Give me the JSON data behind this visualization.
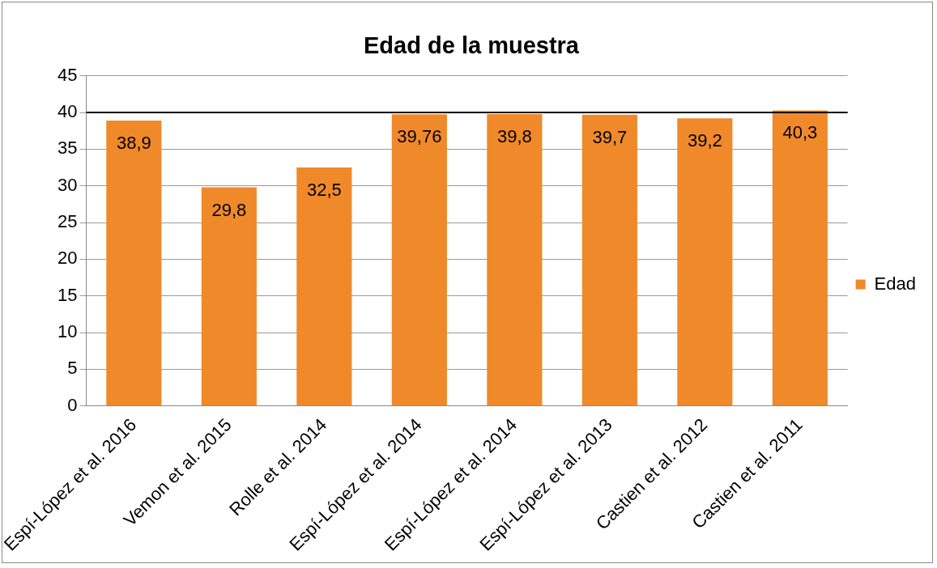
{
  "chart_data": {
    "type": "bar",
    "title": "Edad de la muestra",
    "categories": [
      "Espí-López et al. 2016",
      "Vemon et al. 2015",
      "Rolle et al. 2014",
      "Espí-López et al. 2014",
      "Espí-López et al. 2014",
      "Espí-López et al. 2013",
      "Castien et al. 2012",
      "Castien et al. 2011"
    ],
    "series": [
      {
        "name": "Edad",
        "color": "#f0892a",
        "values": [
          38.9,
          29.8,
          32.5,
          39.76,
          39.8,
          39.7,
          39.2,
          40.3
        ],
        "value_labels": [
          "38,9",
          "29,8",
          "32,5",
          "39,76",
          "39,8",
          "39,7",
          "39,2",
          "40,3"
        ]
      }
    ],
    "ylim": [
      0,
      45
    ],
    "yticks": [
      0,
      5,
      10,
      15,
      20,
      25,
      30,
      35,
      40,
      45
    ],
    "grid": "y",
    "legend": "right",
    "ref_lines": [
      {
        "axis": "y",
        "value": 40,
        "color": "#000000"
      }
    ]
  }
}
